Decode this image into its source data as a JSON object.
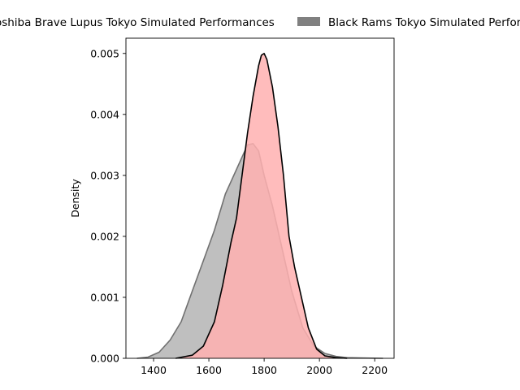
{
  "chart_data": {
    "type": "area",
    "xlabel": "",
    "ylabel": "Density",
    "xlim": [
      1300,
      2270
    ],
    "ylim": [
      0,
      0.00525
    ],
    "xticks": [
      1400,
      1600,
      1800,
      2000,
      2200
    ],
    "yticks": [
      0,
      0.001,
      0.002,
      0.003,
      0.004,
      0.005
    ],
    "xtick_labels": [
      "1400",
      "1600",
      "1800",
      "2000",
      "2200"
    ],
    "ytick_labels": [
      "0.000",
      "0.001",
      "0.002",
      "0.003",
      "0.004",
      "0.005"
    ],
    "grid": false,
    "legend_position": "top (above plot)",
    "series": [
      {
        "name": "Toshiba Brave Lupus Tokyo Simulated Performances",
        "fill_color": "#ffb0b0",
        "line_color": "#000000",
        "x": [
          1480,
          1540,
          1580,
          1620,
          1650,
          1680,
          1700,
          1720,
          1740,
          1760,
          1780,
          1790,
          1800,
          1810,
          1830,
          1850,
          1870,
          1890,
          1910,
          1930,
          1960,
          1990,
          2020,
          2060,
          2100
        ],
        "y": [
          0,
          5e-05,
          0.0002,
          0.0006,
          0.0012,
          0.0019,
          0.0023,
          0.003,
          0.0037,
          0.0043,
          0.0048,
          0.00497,
          0.005,
          0.0049,
          0.00445,
          0.0038,
          0.003,
          0.002,
          0.0015,
          0.0011,
          0.0005,
          0.00015,
          4e-05,
          1e-05,
          0
        ]
      },
      {
        "name": "Black Rams Tokyo Simulated Performances",
        "fill_color": "#808080",
        "line_color": "#707070",
        "x": [
          1340,
          1380,
          1420,
          1460,
          1500,
          1540,
          1580,
          1620,
          1660,
          1700,
          1720,
          1740,
          1760,
          1780,
          1800,
          1830,
          1860,
          1900,
          1940,
          1980,
          2020,
          2060,
          2100,
          2150,
          2230
        ],
        "y": [
          0,
          2e-05,
          0.0001,
          0.0003,
          0.0006,
          0.0011,
          0.0016,
          0.0021,
          0.0027,
          0.0031,
          0.0033,
          0.0035,
          0.00352,
          0.0034,
          0.003,
          0.0025,
          0.0019,
          0.0011,
          0.0005,
          0.0002,
          8e-05,
          3e-05,
          1e-05,
          5e-06,
          0
        ]
      }
    ]
  }
}
